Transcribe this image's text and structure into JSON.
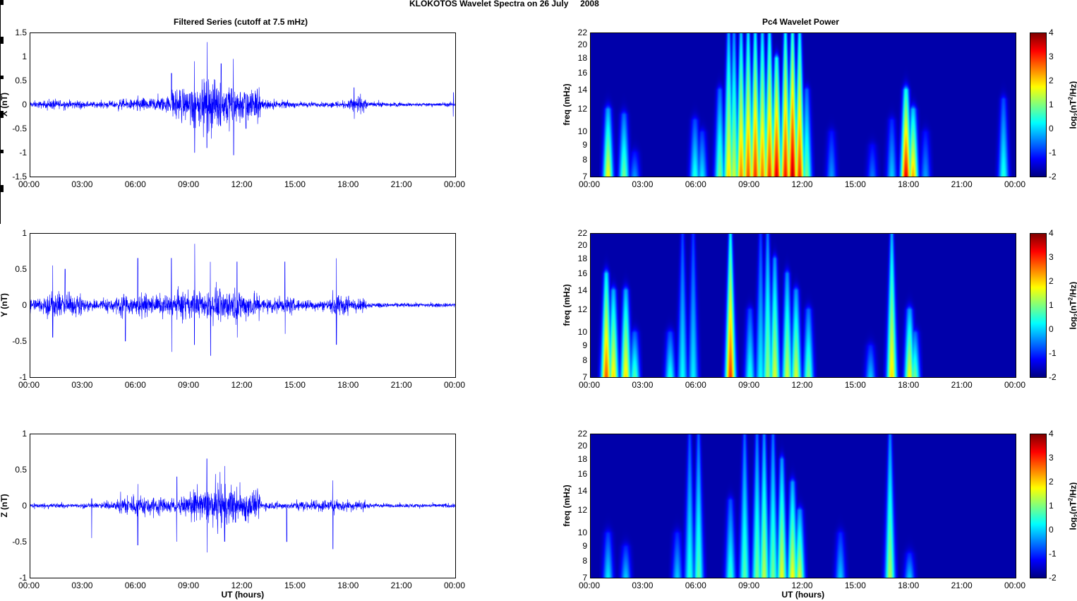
{
  "title": "KLOKOTOS Wavelet Spectra on 26 July     2008",
  "chart_data": [
    {
      "type": "line",
      "title": "Filtered Series (cutoff at 7.5 mHz)",
      "panels": [
        {
          "ylabel": "X (nT)",
          "ylim": [
            -1.5,
            1.5
          ],
          "yticks": [
            "-1.5",
            "-1",
            "-0.5",
            "0",
            "0.5",
            "1",
            "1.5"
          ],
          "ytick_values": [
            -1.5,
            -1,
            -0.5,
            0,
            0.5,
            1,
            1.5
          ],
          "xlabel": "",
          "hourly_amplitude_nT": [
            0.1,
            0.15,
            0.12,
            0.08,
            0.1,
            0.15,
            0.2,
            0.25,
            0.45,
            0.6,
            0.7,
            0.6,
            0.5,
            0.15,
            0.1,
            0.08,
            0.07,
            0.1,
            0.25,
            0.08,
            0.06,
            0.05,
            0.05,
            0.06
          ],
          "spikes": [
            [
              8.0,
              0.65,
              -0.6
            ],
            [
              9.3,
              0.9,
              -1.0
            ],
            [
              10.0,
              1.3,
              -0.9
            ],
            [
              10.8,
              0.85,
              -0.8
            ],
            [
              11.5,
              0.95,
              -1.05
            ],
            [
              12.2,
              0.3,
              -0.5
            ],
            [
              18.3,
              0.35,
              -0.3
            ],
            [
              23.9,
              0.25,
              -0.25
            ]
          ]
        },
        {
          "ylabel": "Y (nT)",
          "ylim": [
            -1,
            1
          ],
          "yticks": [
            "-1",
            "-0.5",
            "0",
            "0.5",
            "1"
          ],
          "ytick_values": [
            -1,
            -0.5,
            0,
            0.5,
            1
          ],
          "xlabel": "",
          "hourly_amplitude_nT": [
            0.15,
            0.25,
            0.2,
            0.12,
            0.15,
            0.2,
            0.2,
            0.18,
            0.25,
            0.25,
            0.3,
            0.3,
            0.25,
            0.15,
            0.15,
            0.1,
            0.1,
            0.2,
            0.12,
            0.05,
            0.04,
            0.04,
            0.04,
            0.04
          ],
          "spikes": [
            [
              1.3,
              0.55,
              -0.45
            ],
            [
              2.0,
              0.5,
              -0.4
            ],
            [
              5.4,
              0.65,
              -0.5
            ],
            [
              6.1,
              0.65,
              -0.4
            ],
            [
              8.0,
              0.65,
              -0.65
            ],
            [
              9.3,
              0.85,
              -0.55
            ],
            [
              10.2,
              0.6,
              -0.7
            ],
            [
              11.7,
              0.6,
              -0.45
            ],
            [
              14.4,
              0.6,
              -0.4
            ],
            [
              17.3,
              0.65,
              -0.55
            ]
          ]
        },
        {
          "ylabel": "Z (nT)",
          "ylim": [
            -1,
            1
          ],
          "yticks": [
            "-1",
            "-0.5",
            "0",
            "0.5",
            "1"
          ],
          "ytick_values": [
            -1,
            -0.5,
            0,
            0.5,
            1
          ],
          "xlabel": "UT (hours)",
          "hourly_amplitude_nT": [
            0.05,
            0.05,
            0.04,
            0.05,
            0.08,
            0.2,
            0.2,
            0.15,
            0.15,
            0.3,
            0.4,
            0.35,
            0.3,
            0.08,
            0.06,
            0.1,
            0.12,
            0.12,
            0.1,
            0.05,
            0.04,
            0.04,
            0.04,
            0.04
          ],
          "spikes": [
            [
              3.5,
              0.1,
              -0.45
            ],
            [
              6.1,
              0.3,
              -0.55
            ],
            [
              8.3,
              0.4,
              -0.5
            ],
            [
              10.0,
              0.65,
              -0.65
            ],
            [
              11.0,
              0.55,
              -0.5
            ],
            [
              14.5,
              0.1,
              -0.5
            ],
            [
              17.1,
              0.35,
              -0.6
            ]
          ]
        }
      ],
      "xlim": [
        0,
        24
      ],
      "xticks": [
        "00:00",
        "03:00",
        "06:00",
        "09:00",
        "12:00",
        "15:00",
        "18:00",
        "21:00",
        "00:00"
      ]
    },
    {
      "type": "heatmap",
      "title": "Pc4 Wavelet Power",
      "ylabel": "freq (mHz)",
      "ylim": [
        7,
        22
      ],
      "yscale": "log",
      "yticks": [
        "7",
        "8",
        "9",
        "10",
        "12",
        "14",
        "16",
        "18",
        "20",
        "22"
      ],
      "ytick_values": [
        7,
        8,
        9,
        10,
        12,
        14,
        16,
        18,
        20,
        22
      ],
      "xticks": [
        "00:00",
        "03:00",
        "06:00",
        "09:00",
        "12:00",
        "15:00",
        "18:00",
        "21:00",
        "00:00"
      ],
      "xlim": [
        0,
        24
      ],
      "colorbar": {
        "label": "log2(nT2/Hz)",
        "range": [
          -2,
          4
        ],
        "ticks": [
          "-2",
          "-1",
          "0",
          "1",
          "2",
          "3",
          "4"
        ],
        "colormap": "jet"
      },
      "panels": [
        {
          "xlabel": "",
          "bursts_time_h_power_fmax": [
            [
              1.0,
              1.8,
              12
            ],
            [
              1.9,
              1.0,
              11.5
            ],
            [
              2.5,
              -0.3,
              8.5
            ],
            [
              5.9,
              0.5,
              11
            ],
            [
              6.3,
              0.2,
              10
            ],
            [
              7.3,
              1.0,
              14
            ],
            [
              7.8,
              2.0,
              22
            ],
            [
              8.1,
              1.5,
              22
            ],
            [
              8.5,
              2.5,
              22
            ],
            [
              8.9,
              2.8,
              22
            ],
            [
              9.3,
              3.0,
              22
            ],
            [
              9.7,
              2.6,
              22
            ],
            [
              10.1,
              3.0,
              22
            ],
            [
              10.5,
              3.5,
              18
            ],
            [
              11.0,
              3.2,
              22
            ],
            [
              11.4,
              3.7,
              22
            ],
            [
              11.8,
              3.0,
              22
            ],
            [
              12.2,
              1.0,
              14
            ],
            [
              13.6,
              -0.3,
              10
            ],
            [
              15.9,
              -0.5,
              9
            ],
            [
              17.0,
              0.0,
              11
            ],
            [
              17.8,
              3.4,
              14
            ],
            [
              18.2,
              2.3,
              12
            ],
            [
              18.9,
              -0.3,
              10
            ],
            [
              23.3,
              0.5,
              13
            ]
          ]
        },
        {
          "xlabel": "",
          "bursts_time_h_power_fmax": [
            [
              0.9,
              2.8,
              16
            ],
            [
              1.3,
              2.0,
              14
            ],
            [
              2.0,
              2.0,
              14
            ],
            [
              2.5,
              0.8,
              10
            ],
            [
              4.5,
              0.5,
              10
            ],
            [
              5.2,
              0.3,
              22
            ],
            [
              5.8,
              0.2,
              22
            ],
            [
              7.9,
              3.0,
              22
            ],
            [
              9.0,
              0.5,
              12
            ],
            [
              9.6,
              0.3,
              22
            ],
            [
              10.0,
              1.2,
              22
            ],
            [
              10.4,
              1.6,
              18
            ],
            [
              11.1,
              1.5,
              16
            ],
            [
              11.6,
              1.6,
              14
            ],
            [
              12.3,
              1.0,
              12
            ],
            [
              15.8,
              0.0,
              9
            ],
            [
              17.0,
              2.0,
              22
            ],
            [
              18.0,
              1.8,
              12
            ],
            [
              18.3,
              1.0,
              10
            ]
          ]
        },
        {
          "xlabel": "UT (hours)",
          "bursts_time_h_power_fmax": [
            [
              1.0,
              0.2,
              10
            ],
            [
              2.0,
              0.0,
              9
            ],
            [
              4.9,
              0.0,
              10
            ],
            [
              5.6,
              0.5,
              22
            ],
            [
              6.1,
              0.8,
              22
            ],
            [
              7.9,
              0.6,
              13
            ],
            [
              8.7,
              0.8,
              22
            ],
            [
              9.4,
              1.0,
              22
            ],
            [
              9.8,
              1.4,
              22
            ],
            [
              10.3,
              1.0,
              22
            ],
            [
              10.8,
              1.7,
              18
            ],
            [
              11.4,
              1.8,
              15
            ],
            [
              11.8,
              1.6,
              12
            ],
            [
              14.1,
              0.0,
              10
            ],
            [
              16.9,
              1.3,
              22
            ],
            [
              18.0,
              0.0,
              8.5
            ]
          ]
        }
      ]
    }
  ]
}
